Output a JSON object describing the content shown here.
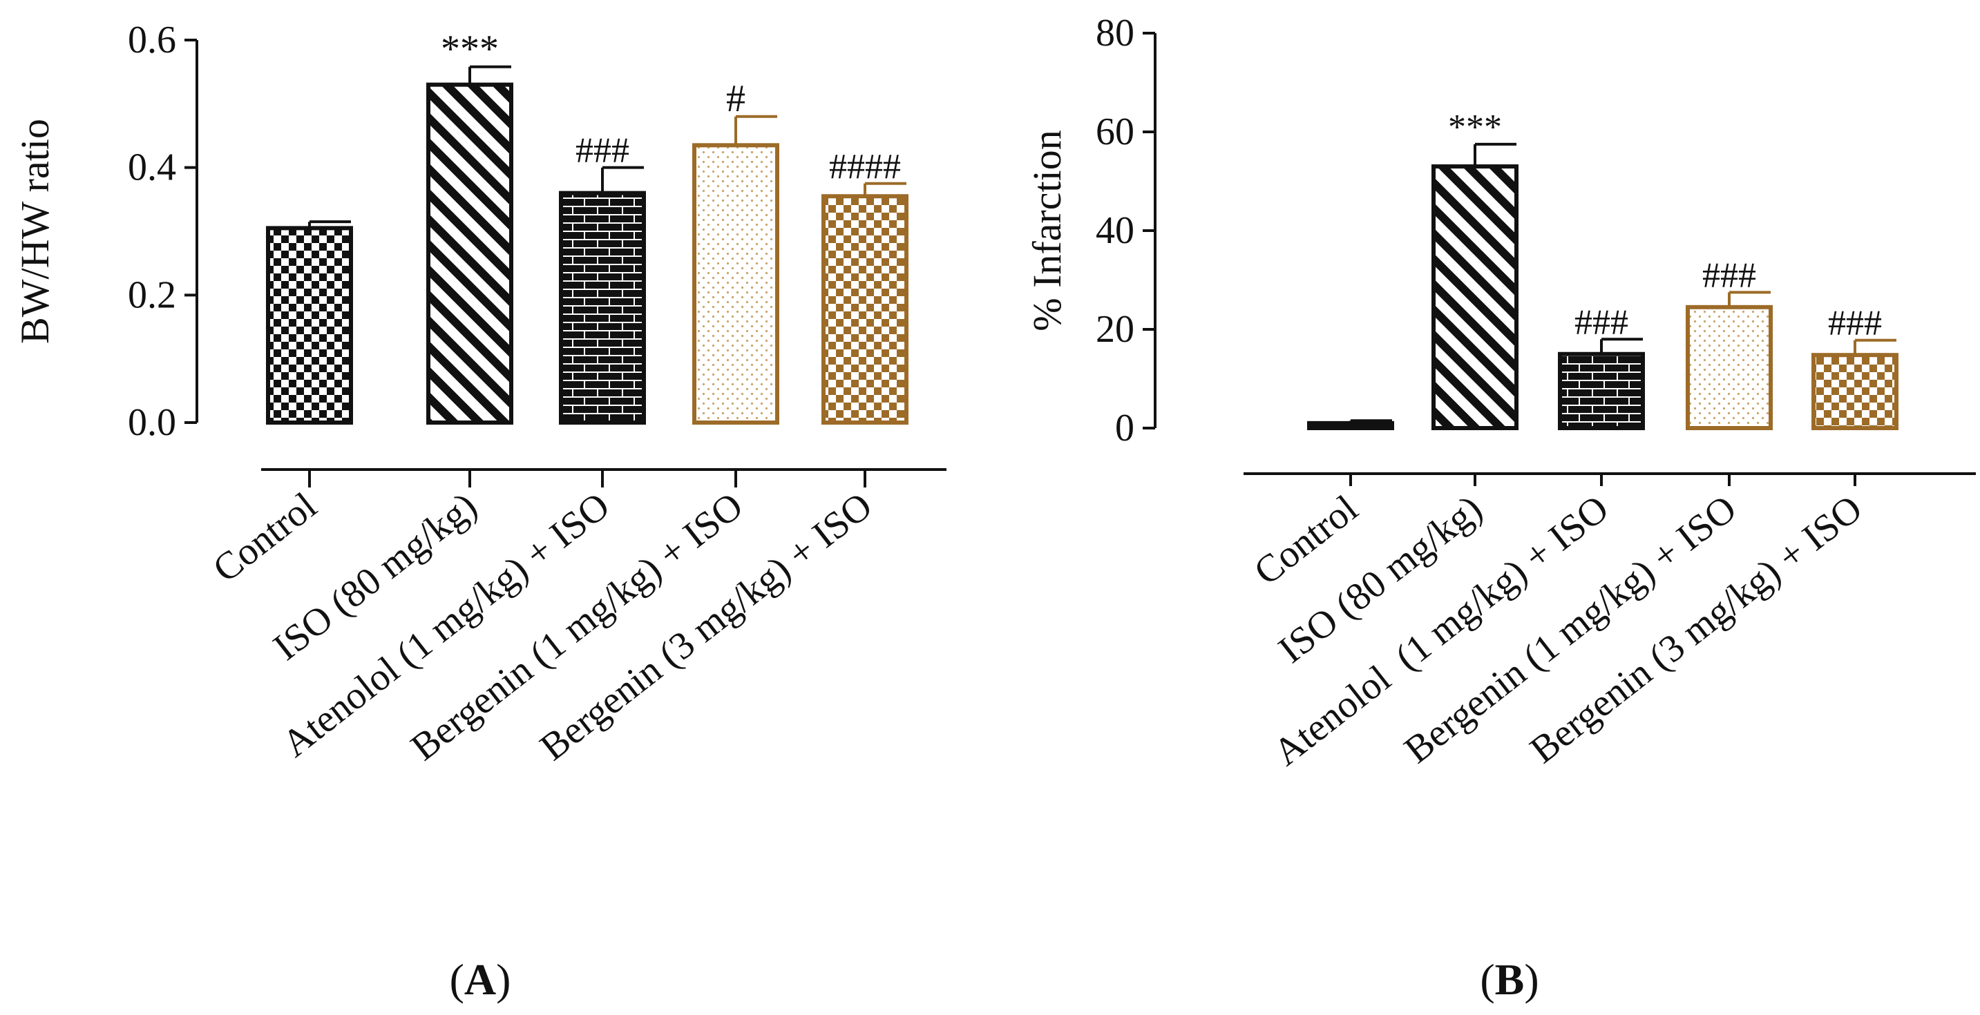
{
  "colors": {
    "black": "#111111",
    "brown": "#9c6b28",
    "axis": "#111111"
  },
  "panels": [
    {
      "label": "A"
    },
    {
      "label": "B"
    }
  ],
  "chart_data": [
    {
      "type": "bar",
      "panel": "A",
      "ylabel": "BW/HW ratio",
      "xlabel": "",
      "ylim": [
        0,
        0.6
      ],
      "yticks": [
        "0.0",
        "0.2",
        "0.4",
        "0.6"
      ],
      "ytick_values": [
        0,
        0.2,
        0.4,
        0.6
      ],
      "categories": [
        "Control",
        "ISO (80 mg/kg)",
        "Atenolol (1 mg/kg) + ISO",
        "Bergenin (1 mg/kg) + ISO",
        "Bergenin (3 mg/kg) + ISO"
      ],
      "values": [
        0.305,
        0.53,
        0.36,
        0.435,
        0.355
      ],
      "errors": [
        0.01,
        0.028,
        0.04,
        0.045,
        0.02
      ],
      "annotations": [
        "",
        "***",
        "###",
        "#",
        "####"
      ],
      "bar_colors": [
        "black",
        "black",
        "black",
        "brown",
        "brown"
      ],
      "patterns": [
        "checker",
        "diagonal",
        "brick",
        "dots",
        "checker"
      ],
      "grid": false
    },
    {
      "type": "bar",
      "panel": "B",
      "ylabel": "% Infarction",
      "xlabel": "",
      "ylim": [
        0,
        80
      ],
      "yticks": [
        "0",
        "20",
        "40",
        "60",
        "80"
      ],
      "ytick_values": [
        0,
        20,
        40,
        60,
        80
      ],
      "categories": [
        "Control",
        "ISO (80 mg/kg)",
        "Atenolol  (1 mg/kg) + ISO",
        "Bergenin (1 mg/kg) + ISO",
        "Bergenin (3 mg/kg) + ISO"
      ],
      "values": [
        1.0,
        53.0,
        15.0,
        24.5,
        14.8
      ],
      "errors": [
        0.5,
        4.5,
        3.0,
        3.0,
        3.0
      ],
      "annotations": [
        "",
        "***",
        "###",
        "###",
        "###"
      ],
      "bar_colors": [
        "black",
        "black",
        "black",
        "brown",
        "brown"
      ],
      "patterns": [
        "solid",
        "diagonal",
        "brick",
        "dots",
        "checker"
      ],
      "grid": false
    }
  ]
}
